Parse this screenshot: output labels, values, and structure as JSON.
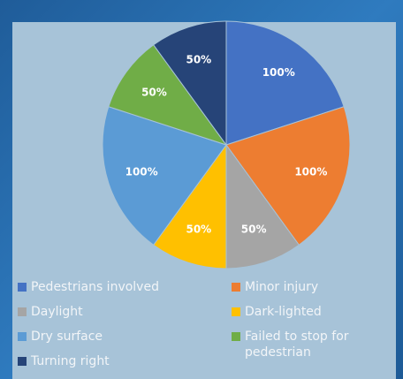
{
  "chart_data": {
    "type": "pie",
    "categories": [
      "Pedestrians involved",
      "Minor injury",
      "Daylight",
      "Dark-lighted",
      "Dry surface",
      "Failed to stop for pedestrian",
      "Turning right"
    ],
    "values": [
      100,
      100,
      50,
      50,
      100,
      50,
      50
    ],
    "value_labels": [
      "100%",
      "100%",
      "50%",
      "50%",
      "100%",
      "50%",
      "50%"
    ],
    "colors": [
      "#4472c4",
      "#ed7d31",
      "#a5a5a5",
      "#ffc000",
      "#5b9bd5",
      "#70ad47",
      "#264478"
    ],
    "legend": "bottom"
  }
}
